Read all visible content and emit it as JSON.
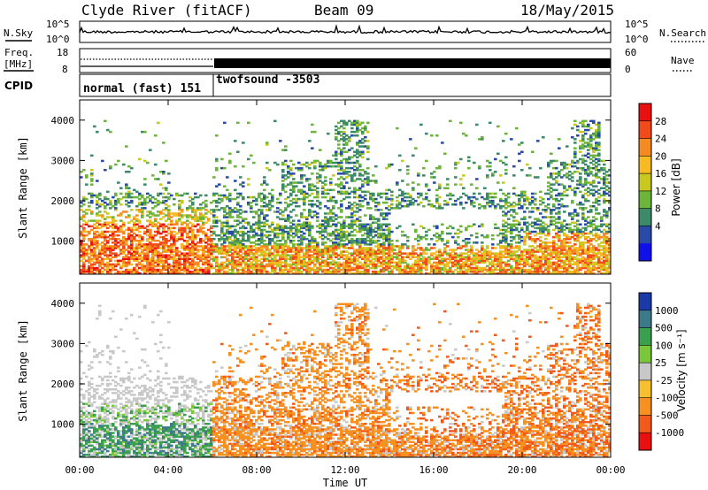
{
  "header": {
    "station": "Clyde River (fitACF)",
    "beam": "Beam 09",
    "date": "18/May/2015"
  },
  "strip": {
    "nsky_label": "N.Sky",
    "nsearch_label": "N.Search",
    "freq_label_line1": "Freq.",
    "freq_label_line2": "[MHz]",
    "nave_label": "Nave",
    "cpid_label": "CPID",
    "nsky_ticks": [
      "10^5",
      "10^0"
    ],
    "nsearch_ticks": [
      "10^5",
      "10^0"
    ],
    "freq_ticks": [
      "18",
      "8"
    ],
    "nave_ticks": [
      "60",
      "0"
    ],
    "cpid_segments": [
      "normal (fast) 151",
      "twofsound -3503"
    ]
  },
  "chart_data": [
    {
      "type": "heatmap",
      "name": "power-panel",
      "ylabel": "Slant Range [km]",
      "y_ticks": [
        1000,
        2000,
        3000,
        4000
      ],
      "ylim": [
        180,
        4500
      ],
      "x_ticks": [
        "00:00",
        "04:00",
        "08:00",
        "12:00",
        "16:00",
        "20:00",
        "00:00"
      ],
      "xlim_hours": [
        0,
        24
      ],
      "colorbar": {
        "label": "Power [dB]",
        "ticks": [
          "28",
          "24",
          "20",
          "16",
          "12",
          "8",
          "4"
        ],
        "colors": [
          "#e81010",
          "#f24a1a",
          "#f68a22",
          "#f6ba22",
          "#c8c820",
          "#6cb43a",
          "#3c8a6a",
          "#2a4aa8",
          "#1010e8"
        ]
      }
    },
    {
      "type": "heatmap",
      "name": "velocity-panel",
      "ylabel": "Slant Range [km]",
      "y_ticks": [
        1000,
        2000,
        3000,
        4000
      ],
      "ylim": [
        180,
        4500
      ],
      "x_ticks": [
        "00:00",
        "04:00",
        "08:00",
        "12:00",
        "16:00",
        "20:00",
        "00:00"
      ],
      "xlim_hours": [
        0,
        24
      ],
      "xlabel": "Time UT",
      "colorbar": {
        "label": "Velocity [m s⁻¹]",
        "ticks": [
          "1000",
          "500",
          "100",
          "25",
          "-25",
          "-100",
          "-500",
          "-1000"
        ],
        "colors": [
          "#1a3aa8",
          "#3c7a8a",
          "#3aa050",
          "#7ac83a",
          "#c8c8c8",
          "#f6c030",
          "#f69020",
          "#f25a1a",
          "#e81010"
        ]
      }
    }
  ]
}
